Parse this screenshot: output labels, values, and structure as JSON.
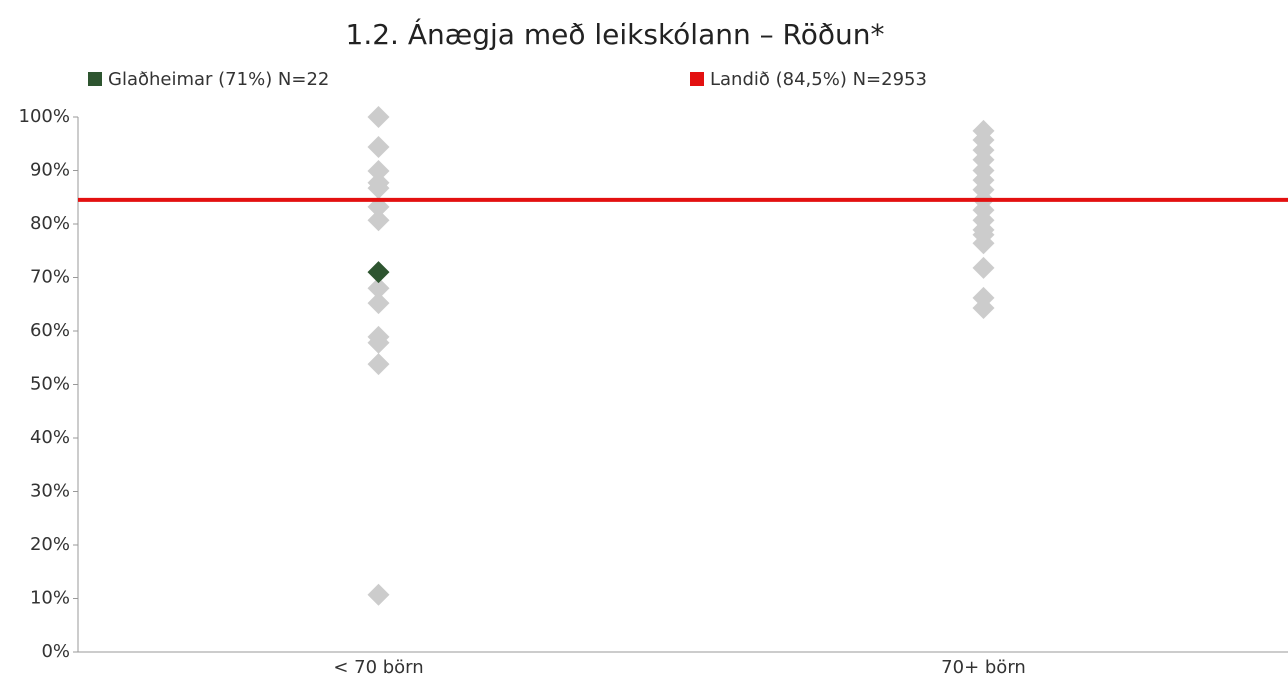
{
  "chart_data": {
    "type": "strip",
    "title": "1.2. Ánægja með leikskólann – Röðun*",
    "categories": [
      "< 70 börn",
      "70+ börn"
    ],
    "others": {
      "color": "#cccccc",
      "values": [
        [
          100,
          94.4,
          89.9,
          87.7,
          86.7,
          83.2,
          80.7,
          68,
          65.2,
          58.9,
          57.8,
          53.8,
          10.7
        ],
        [
          97.4,
          95.7,
          93.8,
          92,
          90,
          88.2,
          86.4,
          84.5,
          82.6,
          80.7,
          78.9,
          78,
          76.4,
          71.8,
          66.2,
          64.3
        ]
      ]
    },
    "series": [
      {
        "name": "Glaðheimar (71%) N=22",
        "color": "#2e5530",
        "values": [
          71,
          null
        ]
      }
    ],
    "reference_line": {
      "name": "Landið (84,5%) N=2953",
      "color": "#e31010",
      "value": 84.5
    },
    "ylim": [
      0,
      100
    ],
    "yticks": [
      {
        "value": 0,
        "label": "0%"
      },
      {
        "value": 10,
        "label": "10%"
      },
      {
        "value": 20,
        "label": "20%"
      },
      {
        "value": 30,
        "label": "30%"
      },
      {
        "value": 40,
        "label": "40%"
      },
      {
        "value": 50,
        "label": "50%"
      },
      {
        "value": 60,
        "label": "60%"
      },
      {
        "value": 70,
        "label": "70%"
      },
      {
        "value": 80,
        "label": "80%"
      },
      {
        "value": 90,
        "label": "90%"
      },
      {
        "value": 100,
        "label": "100%"
      }
    ]
  }
}
